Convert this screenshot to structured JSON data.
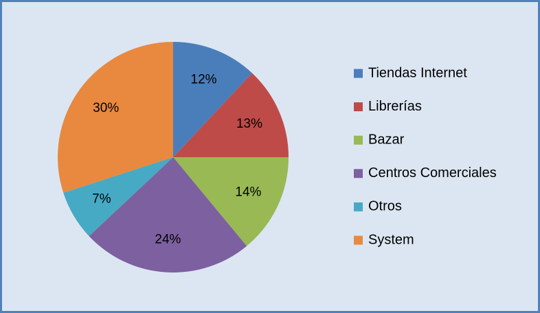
{
  "chart_data": {
    "type": "pie",
    "categories": [
      "Tiendas Internet",
      "Librerías",
      "Bazar",
      "Centros Comerciales",
      "Otros",
      "System"
    ],
    "values": [
      12,
      13,
      14,
      24,
      7,
      30
    ],
    "value_labels": [
      "12%",
      "13%",
      "14%",
      "24%",
      "7%",
      "30%"
    ],
    "colors": [
      "#4a7ebb",
      "#be4b48",
      "#98b954",
      "#7d60a0",
      "#46aac5",
      "#e8893f"
    ],
    "legend": "right"
  }
}
